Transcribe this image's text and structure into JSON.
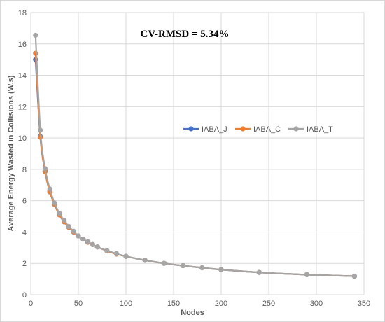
{
  "chart_data": {
    "type": "line",
    "title": "",
    "annotation": "CV-RMSD = 5.34%",
    "xlabel": "Nodes",
    "ylabel": "Average Energy Wasted in Collisions (W.s)",
    "xlim": [
      0,
      350
    ],
    "ylim": [
      0,
      18
    ],
    "xticks": [
      0,
      50,
      100,
      150,
      200,
      250,
      300,
      350
    ],
    "yticks": [
      0,
      2,
      4,
      6,
      8,
      10,
      12,
      14,
      16,
      18
    ],
    "grid": true,
    "legend_position": "right-middle",
    "series": [
      {
        "name": "IABA_J",
        "color": "#4472c4",
        "x": [
          5,
          10,
          15,
          20,
          25,
          30,
          35,
          40,
          45,
          50,
          55,
          60,
          65,
          70,
          80,
          90,
          100,
          120,
          140,
          160,
          180,
          200,
          240,
          290,
          340
        ],
        "y": [
          15.0,
          10.1,
          7.9,
          6.6,
          5.8,
          5.1,
          4.65,
          4.3,
          4.0,
          3.75,
          3.55,
          3.35,
          3.2,
          3.05,
          2.8,
          2.6,
          2.45,
          2.2,
          2.0,
          1.85,
          1.72,
          1.6,
          1.42,
          1.28,
          1.18
        ]
      },
      {
        "name": "IABA_C",
        "color": "#ed7d31",
        "x": [
          5,
          10,
          15,
          20,
          25,
          30,
          35,
          40,
          45,
          50,
          55,
          60,
          65,
          70,
          80,
          90,
          100,
          120,
          140,
          160,
          180,
          200,
          240,
          290,
          340
        ],
        "y": [
          15.4,
          10.05,
          7.85,
          6.55,
          5.75,
          5.1,
          4.65,
          4.3,
          4.0,
          3.75,
          3.55,
          3.35,
          3.2,
          3.05,
          2.8,
          2.6,
          2.45,
          2.2,
          2.0,
          1.85,
          1.72,
          1.6,
          1.42,
          1.28,
          1.18
        ]
      },
      {
        "name": "IABA_T",
        "color": "#a5a5a5",
        "x": [
          5,
          10,
          15,
          20,
          25,
          30,
          35,
          40,
          45,
          50,
          55,
          60,
          65,
          70,
          80,
          90,
          100,
          120,
          140,
          160,
          180,
          200,
          240,
          290,
          340
        ],
        "y": [
          16.55,
          10.5,
          8.05,
          6.75,
          5.85,
          5.2,
          4.75,
          4.35,
          4.05,
          3.75,
          3.55,
          3.38,
          3.2,
          3.05,
          2.82,
          2.62,
          2.45,
          2.2,
          2.0,
          1.85,
          1.72,
          1.6,
          1.42,
          1.28,
          1.18
        ]
      }
    ]
  }
}
